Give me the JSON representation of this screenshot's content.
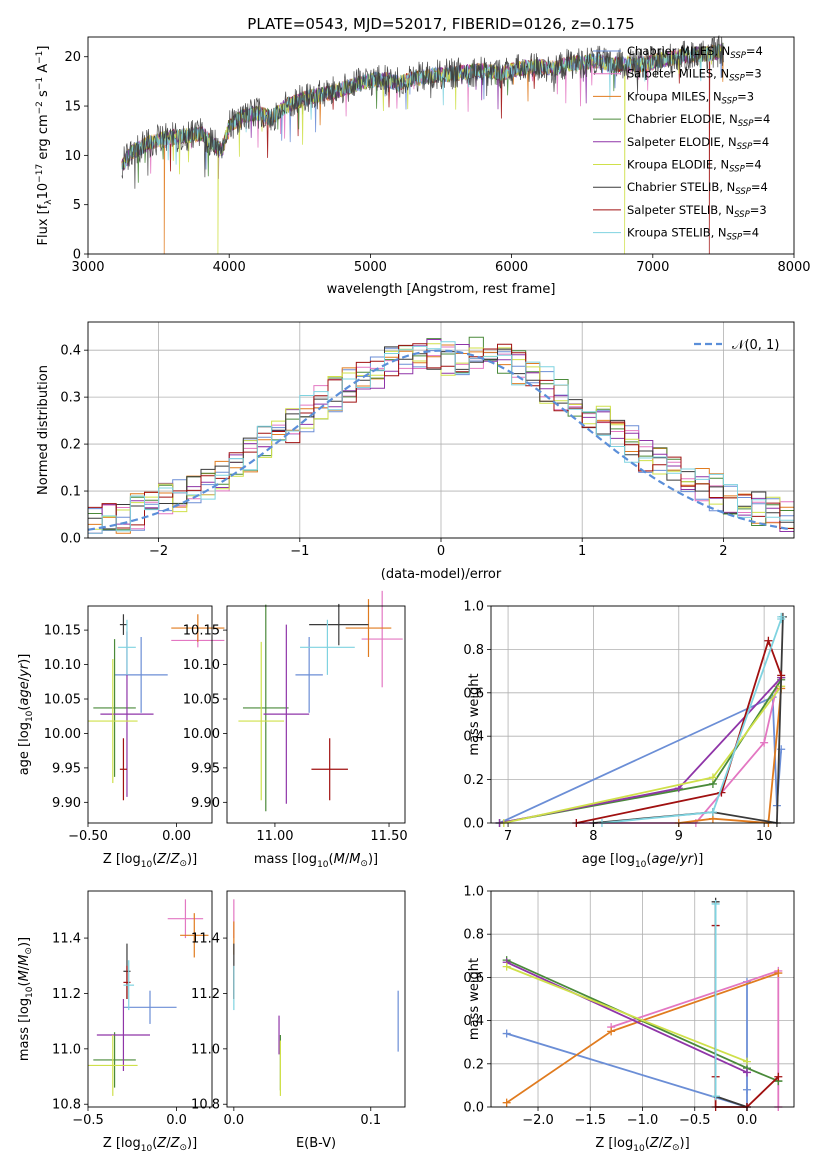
{
  "figure": {
    "title": "PLATE=0543, MJD=52017, FIBERID=0126, z=0.175"
  },
  "colors": {
    "chabrier_miles": "#6b8ed6",
    "salpeter_miles": "#e377c2",
    "kroupa_miles": "#e07b1f",
    "chabrier_elodie": "#4a8a3a",
    "salpeter_elodie": "#8f35a8",
    "kroupa_elodie": "#cfe04a",
    "chabrier_stelib": "#3a3a3a",
    "salpeter_stelib": "#a01010",
    "kroupa_stelib": "#7fd3e0",
    "grid": "#b0b0b0",
    "normal": "#5b8fd9"
  },
  "chart_data": [
    {
      "id": "spectrum",
      "type": "line",
      "xlabel": "wavelength [Angstrom, rest frame]",
      "ylabel": "Flux [f_λ 10^-17 erg cm^-2 s^-1 A^-1]",
      "xlim": [
        3000,
        8000
      ],
      "ylim": [
        0,
        22
      ],
      "xticks": [
        3000,
        4000,
        5000,
        6000,
        7000,
        8000
      ],
      "yticks": [
        0,
        5,
        10,
        15,
        20
      ],
      "grid": false,
      "legend_position": "upper-right",
      "legend": [
        {
          "key": "chabrier_miles",
          "label": "Chabrier MILES, N",
          "sub": "SSP",
          "suffix": "=4"
        },
        {
          "key": "salpeter_miles",
          "label": "Salpeter MILES, N",
          "sub": "SSP",
          "suffix": "=3"
        },
        {
          "key": "kroupa_miles",
          "label": "Kroupa MILES, N",
          "sub": "SSP",
          "suffix": "=3"
        },
        {
          "key": "chabrier_elodie",
          "label": "Chabrier ELODIE, N",
          "sub": "SSP",
          "suffix": "=4"
        },
        {
          "key": "salpeter_elodie",
          "label": "Salpeter ELODIE, N",
          "sub": "SSP",
          "suffix": "=4"
        },
        {
          "key": "kroupa_elodie",
          "label": "Kroupa ELODIE, N",
          "sub": "SSP",
          "suffix": "=4"
        },
        {
          "key": "chabrier_stelib",
          "label": "Chabrier STELIB, N",
          "sub": "SSP",
          "suffix": "=4"
        },
        {
          "key": "salpeter_stelib",
          "label": "Salpeter STELIB, N",
          "sub": "SSP",
          "suffix": "=3"
        },
        {
          "key": "kroupa_stelib",
          "label": "Kroupa STELIB, N",
          "sub": "SSP",
          "suffix": "=4"
        }
      ],
      "continuum": [
        [
          3240,
          9.0
        ],
        [
          3300,
          10.2
        ],
        [
          3400,
          11.0
        ],
        [
          3500,
          11.6
        ],
        [
          3600,
          11.8
        ],
        [
          3700,
          12.0
        ],
        [
          3800,
          12.2
        ],
        [
          3900,
          11.0
        ],
        [
          3950,
          10.5
        ],
        [
          4000,
          13.0
        ],
        [
          4100,
          14.0
        ],
        [
          4200,
          14.3
        ],
        [
          4300,
          13.8
        ],
        [
          4400,
          15.0
        ],
        [
          4500,
          15.6
        ],
        [
          4600,
          16.0
        ],
        [
          4700,
          16.3
        ],
        [
          4800,
          16.7
        ],
        [
          4900,
          17.2
        ],
        [
          5000,
          17.6
        ],
        [
          5100,
          17.7
        ],
        [
          5200,
          17.3
        ],
        [
          5300,
          17.8
        ],
        [
          5400,
          18.0
        ],
        [
          5500,
          18.2
        ],
        [
          5600,
          18.3
        ],
        [
          5700,
          18.5
        ],
        [
          5800,
          18.6
        ],
        [
          5900,
          18.3
        ],
        [
          6000,
          18.6
        ],
        [
          6100,
          18.9
        ],
        [
          6200,
          19.0
        ],
        [
          6300,
          18.8
        ],
        [
          6400,
          19.3
        ],
        [
          6500,
          19.4
        ],
        [
          6600,
          19.6
        ],
        [
          6700,
          19.2
        ],
        [
          6800,
          19.3
        ],
        [
          6900,
          19.2
        ],
        [
          7000,
          19.4
        ],
        [
          7100,
          19.8
        ],
        [
          7200,
          20.0
        ],
        [
          7300,
          20.2
        ],
        [
          7400,
          20.3
        ],
        [
          7500,
          20.6
        ]
      ],
      "cutoffs": [
        {
          "key": "kroupa_miles",
          "x": 3540
        },
        {
          "key": "kroupa_elodie",
          "x": 3920
        },
        {
          "key": "kroupa_elodie",
          "x": 6800
        },
        {
          "key": "salpeter_stelib",
          "x": 7400
        }
      ]
    },
    {
      "id": "residuals",
      "type": "histogram",
      "xlabel": "(data-model)/error",
      "ylabel": "Normed distribution",
      "xlim": [
        -2.5,
        2.5
      ],
      "ylim": [
        0,
        0.46
      ],
      "xticks": [
        -2,
        -1,
        0,
        1,
        2
      ],
      "yticks": [
        0.0,
        0.1,
        0.2,
        0.3,
        0.4
      ],
      "grid": true,
      "legend": [
        {
          "label": "𝒩(0, 1)"
        }
      ],
      "legend_position": "upper-right"
    },
    {
      "id": "age_vs_Z",
      "type": "errorbar",
      "xlabel": "Z [log10(Z/Z⊙)]",
      "ylabel": "age  [log10(age/yr)]",
      "xlim": [
        -0.5,
        0.2
      ],
      "ylim": [
        9.87,
        10.185
      ],
      "xticks": [
        -0.5,
        0.0
      ],
      "yticks": [
        9.9,
        9.95,
        10.0,
        10.05,
        10.1,
        10.15
      ],
      "points": [
        {
          "key": "chabrier_miles",
          "x": -0.2,
          "y": 10.085,
          "xerr": 0.15,
          "yerr": 0.055
        },
        {
          "key": "salpeter_miles",
          "x": 0.12,
          "y": 10.135,
          "xerr": 0.15,
          "yerr": 0.01
        },
        {
          "key": "kroupa_miles",
          "x": 0.12,
          "y": 10.153,
          "xerr": 0.15,
          "yerr": 0.02
        },
        {
          "key": "chabrier_elodie",
          "x": -0.35,
          "y": 10.037,
          "xerr": 0.12,
          "yerr": 0.1
        },
        {
          "key": "salpeter_elodie",
          "x": -0.28,
          "y": 10.028,
          "xerr": 0.15,
          "yerr": 0.12
        },
        {
          "key": "kroupa_elodie",
          "x": -0.36,
          "y": 10.018,
          "xerr": 0.14,
          "yerr": 0.09
        },
        {
          "key": "chabrier_stelib",
          "x": -0.3,
          "y": 10.158,
          "xerr": 0.02,
          "yerr": 0.015
        },
        {
          "key": "salpeter_stelib",
          "x": -0.3,
          "y": 9.948,
          "xerr": 0.02,
          "yerr": 0.045
        },
        {
          "key": "kroupa_stelib",
          "x": -0.28,
          "y": 10.125,
          "xerr": 0.05,
          "yerr": 0.04
        }
      ]
    },
    {
      "id": "age_vs_mass",
      "type": "errorbar",
      "xlabel": "mass [log10(M/M⊙)]",
      "ylabel": "",
      "xlim": [
        10.79,
        11.57
      ],
      "ylim": [
        9.87,
        10.185
      ],
      "xticks": [
        11.0,
        11.5
      ],
      "yticks": [
        9.9,
        9.95,
        10.0,
        10.05,
        10.1,
        10.15
      ],
      "points": [
        {
          "key": "chabrier_miles",
          "x": 11.15,
          "y": 10.085,
          "xerr": 0.06,
          "yerr": 0.055
        },
        {
          "key": "salpeter_miles",
          "x": 11.47,
          "y": 10.137,
          "xerr": 0.09,
          "yerr": 0.07
        },
        {
          "key": "kroupa_miles",
          "x": 11.41,
          "y": 10.153,
          "xerr": 0.1,
          "yerr": 0.042
        },
        {
          "key": "chabrier_elodie",
          "x": 10.96,
          "y": 10.037,
          "xerr": 0.1,
          "yerr": 0.15
        },
        {
          "key": "salpeter_elodie",
          "x": 11.05,
          "y": 10.028,
          "xerr": 0.1,
          "yerr": 0.13
        },
        {
          "key": "kroupa_elodie",
          "x": 10.94,
          "y": 10.018,
          "xerr": 0.1,
          "yerr": 0.115
        },
        {
          "key": "chabrier_stelib",
          "x": 11.28,
          "y": 10.158,
          "xerr": 0.13,
          "yerr": 0.03
        },
        {
          "key": "salpeter_stelib",
          "x": 11.24,
          "y": 9.948,
          "xerr": 0.08,
          "yerr": 0.045
        },
        {
          "key": "kroupa_stelib",
          "x": 11.23,
          "y": 10.125,
          "xerr": 0.12,
          "yerr": 0.04
        }
      ]
    },
    {
      "id": "weight_vs_age",
      "type": "line",
      "xlabel": "age  [log10(age/yr)]",
      "ylabel": "mass weight",
      "xlim": [
        6.8,
        10.35
      ],
      "ylim": [
        0,
        1
      ],
      "xticks": [
        7,
        8,
        9,
        10
      ],
      "yticks": [
        0.0,
        0.2,
        0.4,
        0.6,
        0.8,
        1.0
      ],
      "grid": true,
      "series": [
        {
          "key": "chabrier_miles",
          "x": [
            6.9,
            10.1,
            10.15,
            10.2
          ],
          "y": [
            0.0,
            0.58,
            0.08,
            0.34
          ]
        },
        {
          "key": "salpeter_miles",
          "x": [
            7.8,
            9.2,
            10.0,
            10.15
          ],
          "y": [
            0.0,
            0.0,
            0.37,
            0.63
          ]
        },
        {
          "key": "kroupa_miles",
          "x": [
            9.0,
            9.4,
            10.05,
            10.2
          ],
          "y": [
            0.0,
            0.02,
            0.0,
            0.62
          ]
        },
        {
          "key": "chabrier_elodie",
          "x": [
            6.9,
            9.4,
            10.2,
            10.2
          ],
          "y": [
            0.0,
            0.18,
            0.66,
            0.67
          ]
        },
        {
          "key": "salpeter_elodie",
          "x": [
            6.9,
            9.0,
            10.2
          ],
          "y": [
            0.0,
            0.16,
            0.67
          ]
        },
        {
          "key": "kroupa_elodie",
          "x": [
            6.95,
            9.4,
            10.2
          ],
          "y": [
            0.0,
            0.21,
            0.63
          ]
        },
        {
          "key": "chabrier_stelib",
          "x": [
            8.0,
            9.4,
            10.15,
            10.22
          ],
          "y": [
            0.0,
            0.05,
            0.0,
            0.95
          ]
        },
        {
          "key": "salpeter_stelib",
          "x": [
            7.8,
            9.5,
            10.05,
            10.2
          ],
          "y": [
            0.0,
            0.14,
            0.84,
            0.68
          ]
        },
        {
          "key": "kroupa_stelib",
          "x": [
            8.1,
            9.4,
            10.2,
            10.2
          ],
          "y": [
            0.0,
            0.05,
            0.94,
            0.95
          ]
        }
      ]
    },
    {
      "id": "mass_vs_Z",
      "type": "errorbar",
      "xlabel": "Z [log10(Z/Z⊙)]",
      "ylabel": "mass [log10(M/M⊙)]",
      "xlim": [
        -0.5,
        0.2
      ],
      "ylim": [
        10.79,
        11.57
      ],
      "xticks": [
        -0.5,
        0.0
      ],
      "yticks": [
        10.8,
        11.0,
        11.2,
        11.4
      ],
      "points": [
        {
          "key": "chabrier_miles",
          "x": -0.15,
          "y": 11.15,
          "xerr": 0.15,
          "yerr": 0.06
        },
        {
          "key": "salpeter_miles",
          "x": 0.05,
          "y": 11.47,
          "xerr": 0.1,
          "yerr": 0.07
        },
        {
          "key": "kroupa_miles",
          "x": 0.1,
          "y": 11.41,
          "xerr": 0.08,
          "yerr": 0.08
        },
        {
          "key": "chabrier_elodie",
          "x": -0.35,
          "y": 10.96,
          "xerr": 0.12,
          "yerr": 0.1
        },
        {
          "key": "salpeter_elodie",
          "x": -0.3,
          "y": 11.05,
          "xerr": 0.15,
          "yerr": 0.13
        },
        {
          "key": "kroupa_elodie",
          "x": -0.36,
          "y": 10.94,
          "xerr": 0.14,
          "yerr": 0.11
        },
        {
          "key": "chabrier_stelib",
          "x": -0.28,
          "y": 11.28,
          "xerr": 0.02,
          "yerr": 0.1
        },
        {
          "key": "salpeter_stelib",
          "x": -0.28,
          "y": 11.24,
          "xerr": 0.02,
          "yerr": 0.06
        },
        {
          "key": "kroupa_stelib",
          "x": -0.27,
          "y": 11.23,
          "xerr": 0.03,
          "yerr": 0.09
        }
      ]
    },
    {
      "id": "mass_vs_ebv",
      "type": "errorbar",
      "xlabel": "E(B-V)",
      "ylabel": "",
      "xlim": [
        -0.005,
        0.125
      ],
      "ylim": [
        10.79,
        11.57
      ],
      "xticks": [
        0.0,
        0.1
      ],
      "yticks": [
        10.8,
        11.0,
        11.2,
        11.4
      ],
      "points": [
        {
          "key": "chabrier_miles",
          "x": 0.12,
          "y": 11.1,
          "xerr": 0.0,
          "yerr": 0.11
        },
        {
          "key": "salpeter_miles",
          "x": 0.0,
          "y": 11.47,
          "xerr": 0.0,
          "yerr": 0.07
        },
        {
          "key": "kroupa_miles",
          "x": 0.0,
          "y": 11.4,
          "xerr": 0.0,
          "yerr": 0.06
        },
        {
          "key": "chabrier_elodie",
          "x": 0.034,
          "y": 10.95,
          "xerr": 0.0,
          "yerr": 0.1
        },
        {
          "key": "salpeter_elodie",
          "x": 0.033,
          "y": 11.05,
          "xerr": 0.0,
          "yerr": 0.07
        },
        {
          "key": "kroupa_elodie",
          "x": 0.034,
          "y": 10.93,
          "xerr": 0.0,
          "yerr": 0.1
        },
        {
          "key": "chabrier_stelib",
          "x": 0.0,
          "y": 11.28,
          "xerr": 0.0,
          "yerr": 0.1
        },
        {
          "key": "salpeter_stelib",
          "x": 0.0,
          "y": 11.24,
          "xerr": 0.0,
          "yerr": 0.06
        },
        {
          "key": "kroupa_stelib",
          "x": 0.0,
          "y": 11.22,
          "xerr": 0.0,
          "yerr": 0.08
        }
      ]
    },
    {
      "id": "weight_vs_Z",
      "type": "line",
      "xlabel": "Z [log10(Z/Z⊙)]",
      "ylabel": "mass weight",
      "xlim": [
        -2.45,
        0.45
      ],
      "ylim": [
        0,
        1
      ],
      "xticks": [
        -2.0,
        -1.5,
        -1.0,
        -0.5,
        0.0
      ],
      "yticks": [
        0.0,
        0.2,
        0.4,
        0.6,
        0.8,
        1.0
      ],
      "grid": true,
      "series": [
        {
          "key": "chabrier_miles",
          "x": [
            -2.3,
            0.0,
            0.0,
            0.0
          ],
          "y": [
            0.34,
            0.0,
            0.58,
            0.08
          ]
        },
        {
          "key": "salpeter_miles",
          "x": [
            -1.3,
            0.3,
            0.3,
            0.3
          ],
          "y": [
            0.37,
            0.63,
            0.0,
            0.0
          ]
        },
        {
          "key": "kroupa_miles",
          "x": [
            -2.3,
            -1.3,
            0.3
          ],
          "y": [
            0.02,
            0.35,
            0.62
          ]
        },
        {
          "key": "chabrier_elodie",
          "x": [
            -2.3,
            0.0,
            0.3,
            0.3
          ],
          "y": [
            0.68,
            0.18,
            0.12,
            0.12
          ]
        },
        {
          "key": "salpeter_elodie",
          "x": [
            -2.3,
            0.0
          ],
          "y": [
            0.67,
            0.16
          ]
        },
        {
          "key": "kroupa_elodie",
          "x": [
            -2.3,
            0.0
          ],
          "y": [
            0.65,
            0.21
          ]
        },
        {
          "key": "chabrier_stelib",
          "x": [
            -0.3,
            -0.3,
            0.0
          ],
          "y": [
            0.95,
            0.05,
            0.0
          ]
        },
        {
          "key": "salpeter_stelib",
          "x": [
            -0.3,
            -0.3,
            -0.3,
            0.0,
            0.3
          ],
          "y": [
            0.84,
            0.14,
            0.0,
            0.0,
            0.14
          ]
        },
        {
          "key": "kroupa_stelib",
          "x": [
            -0.3,
            -0.3
          ],
          "y": [
            0.94,
            0.05
          ]
        }
      ]
    }
  ]
}
